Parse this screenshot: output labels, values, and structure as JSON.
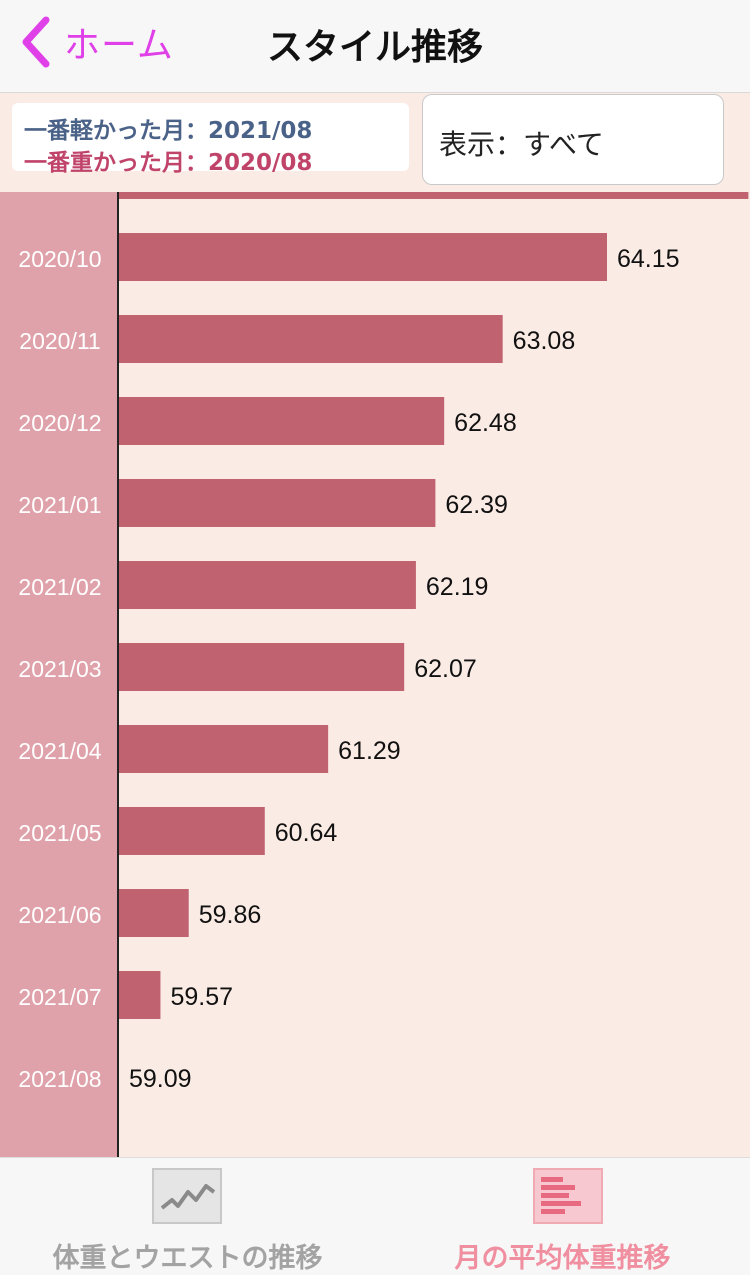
{
  "nav": {
    "back_label": "ホーム",
    "title": "スタイル推移"
  },
  "summary": {
    "lightest": "一番軽かった月：2021/08",
    "heaviest": "一番重かった月：2020/08"
  },
  "display_select": {
    "label": "表示：すべて"
  },
  "colors": {
    "bar": "#c06270",
    "label_column": "#e0a2aa",
    "background": "#fbebe5",
    "accent": "#e040e8",
    "lightest_text": "#4b6288",
    "heaviest_text": "#c0446a"
  },
  "chart_data": {
    "type": "bar",
    "orientation": "horizontal",
    "categories": [
      "2020/10",
      "2020/11",
      "2020/12",
      "2021/01",
      "2021/02",
      "2021/03",
      "2021/04",
      "2021/05",
      "2021/06",
      "2021/07",
      "2021/08"
    ],
    "values": [
      64.15,
      63.08,
      62.48,
      62.39,
      62.19,
      62.07,
      61.29,
      60.64,
      59.86,
      59.57,
      59.09
    ],
    "partial_top_value": 65.6
  },
  "tabs": [
    {
      "label": "体重とウエストの推移",
      "icon": "line-chart-icon",
      "selected": false
    },
    {
      "label": "月の平均体重推移",
      "icon": "bar-chart-icon",
      "selected": true
    }
  ]
}
